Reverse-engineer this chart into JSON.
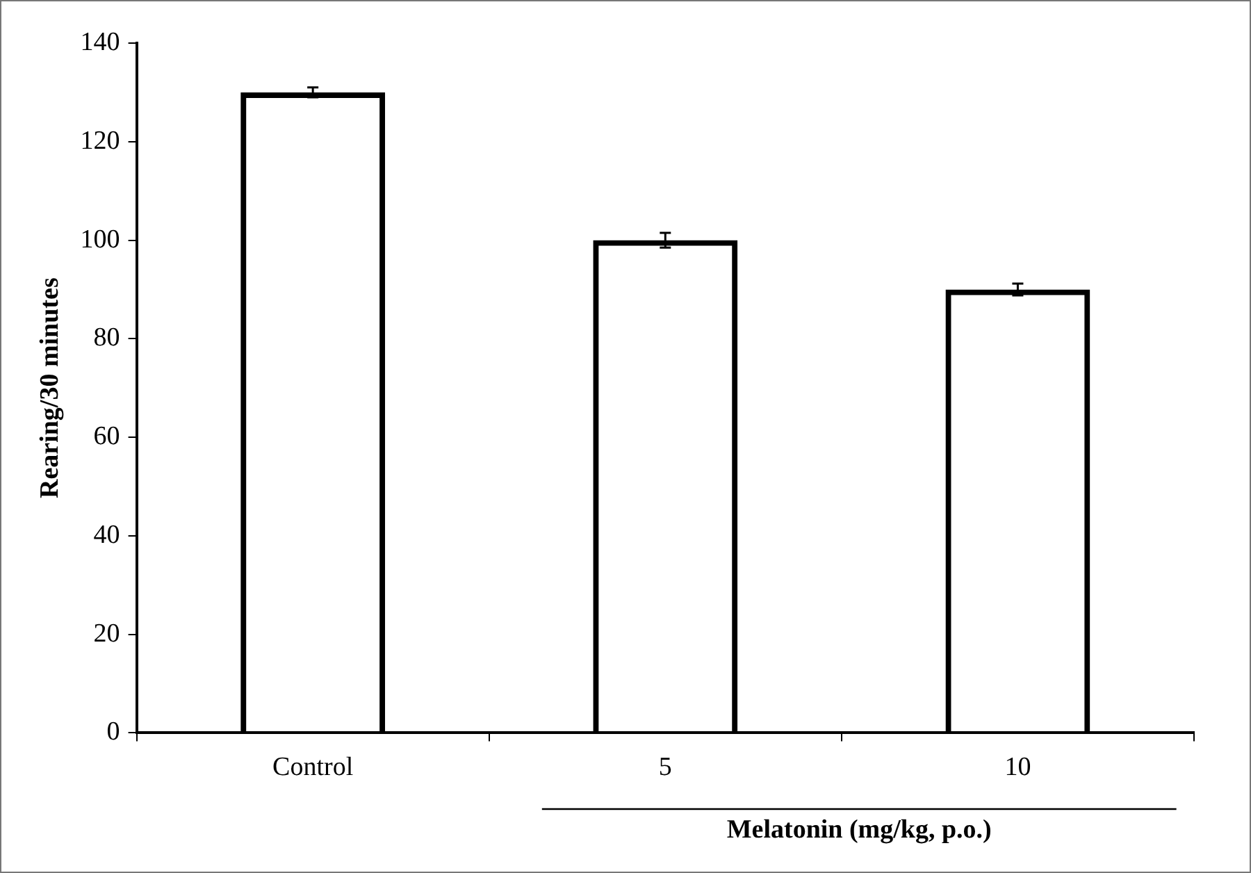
{
  "chart_data": {
    "type": "bar",
    "ylabel": "Rearing/30 minutes",
    "xlabel": "Melatonin (mg/kg, p.o.)",
    "categories": [
      "Control",
      "5",
      "10"
    ],
    "values": [
      130,
      100,
      90
    ],
    "errors": [
      1,
      1.5,
      1.2
    ],
    "color": "#000000",
    "ylim": [
      0,
      140
    ],
    "yticks": [
      0,
      20,
      40,
      60,
      80,
      100,
      120,
      140
    ],
    "legend": false
  }
}
